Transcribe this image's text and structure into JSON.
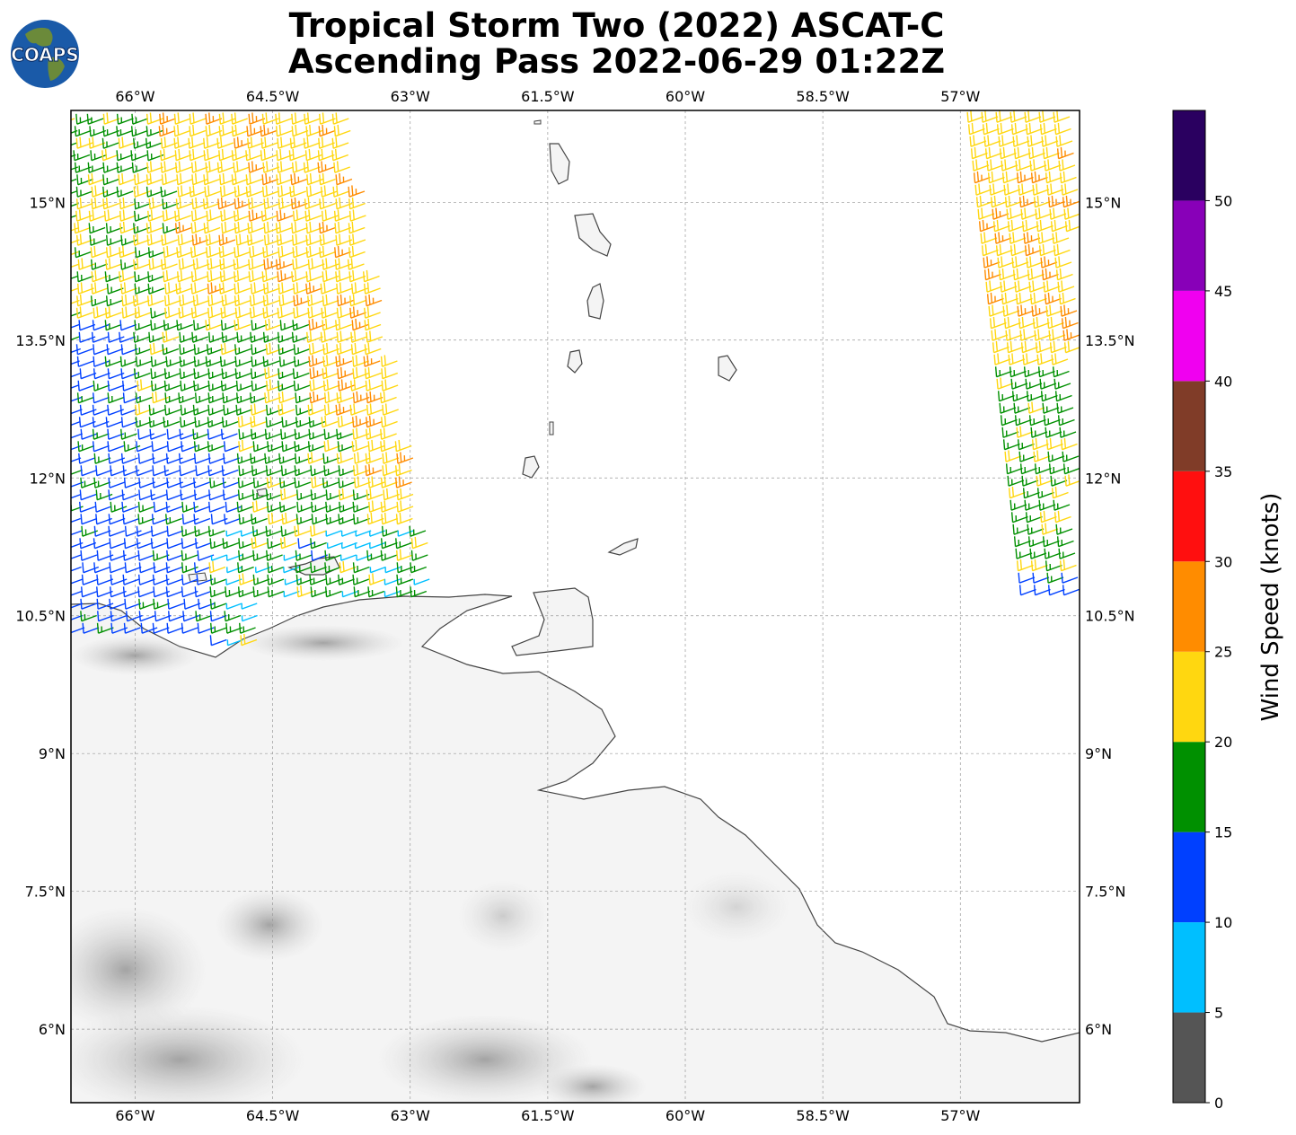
{
  "title": {
    "line1": "Tropical Storm Two (2022) ASCAT-C",
    "line2": "Ascending Pass 2022-06-29 01:22Z"
  },
  "logo": {
    "text": "COAPS",
    "icon": "earth-globe-icon"
  },
  "map": {
    "projection": "plate-carree",
    "lon_range": [
      -66.7,
      -55.7
    ],
    "lat_range": [
      5.2,
      16.0
    ],
    "lon_ticks": [
      "66°W",
      "64.5°W",
      "63°W",
      "61.5°W",
      "60°W",
      "58.5°W",
      "57°W"
    ],
    "lat_ticks": [
      "15°N",
      "13.5°N",
      "12°N",
      "10.5°N",
      "9°N",
      "7.5°N",
      "6°N"
    ],
    "gridlines": true,
    "land_shading": "grayscale-topography",
    "barb_style": "wind-barbs"
  },
  "colorbar": {
    "label": "Wind Speed (knots)",
    "ticks": [
      "0",
      "5",
      "10",
      "15",
      "20",
      "25",
      "30",
      "35",
      "40",
      "45",
      "50"
    ],
    "bins": [
      {
        "min": 0,
        "max": 5,
        "color": "#555555"
      },
      {
        "min": 5,
        "max": 10,
        "color": "#00bfff"
      },
      {
        "min": 10,
        "max": 15,
        "color": "#0040ff"
      },
      {
        "min": 15,
        "max": 20,
        "color": "#009000"
      },
      {
        "min": 20,
        "max": 25,
        "color": "#ffd710"
      },
      {
        "min": 25,
        "max": 30,
        "color": "#ff8c00"
      },
      {
        "min": 30,
        "max": 35,
        "color": "#ff0f0f"
      },
      {
        "min": 35,
        "max": 40,
        "color": "#803c28"
      },
      {
        "min": 40,
        "max": 45,
        "color": "#f000f0"
      },
      {
        "min": 45,
        "max": 50,
        "color": "#8800b8"
      },
      {
        "min": 50,
        "max": 55,
        "color": "#2a0060"
      }
    ]
  }
}
